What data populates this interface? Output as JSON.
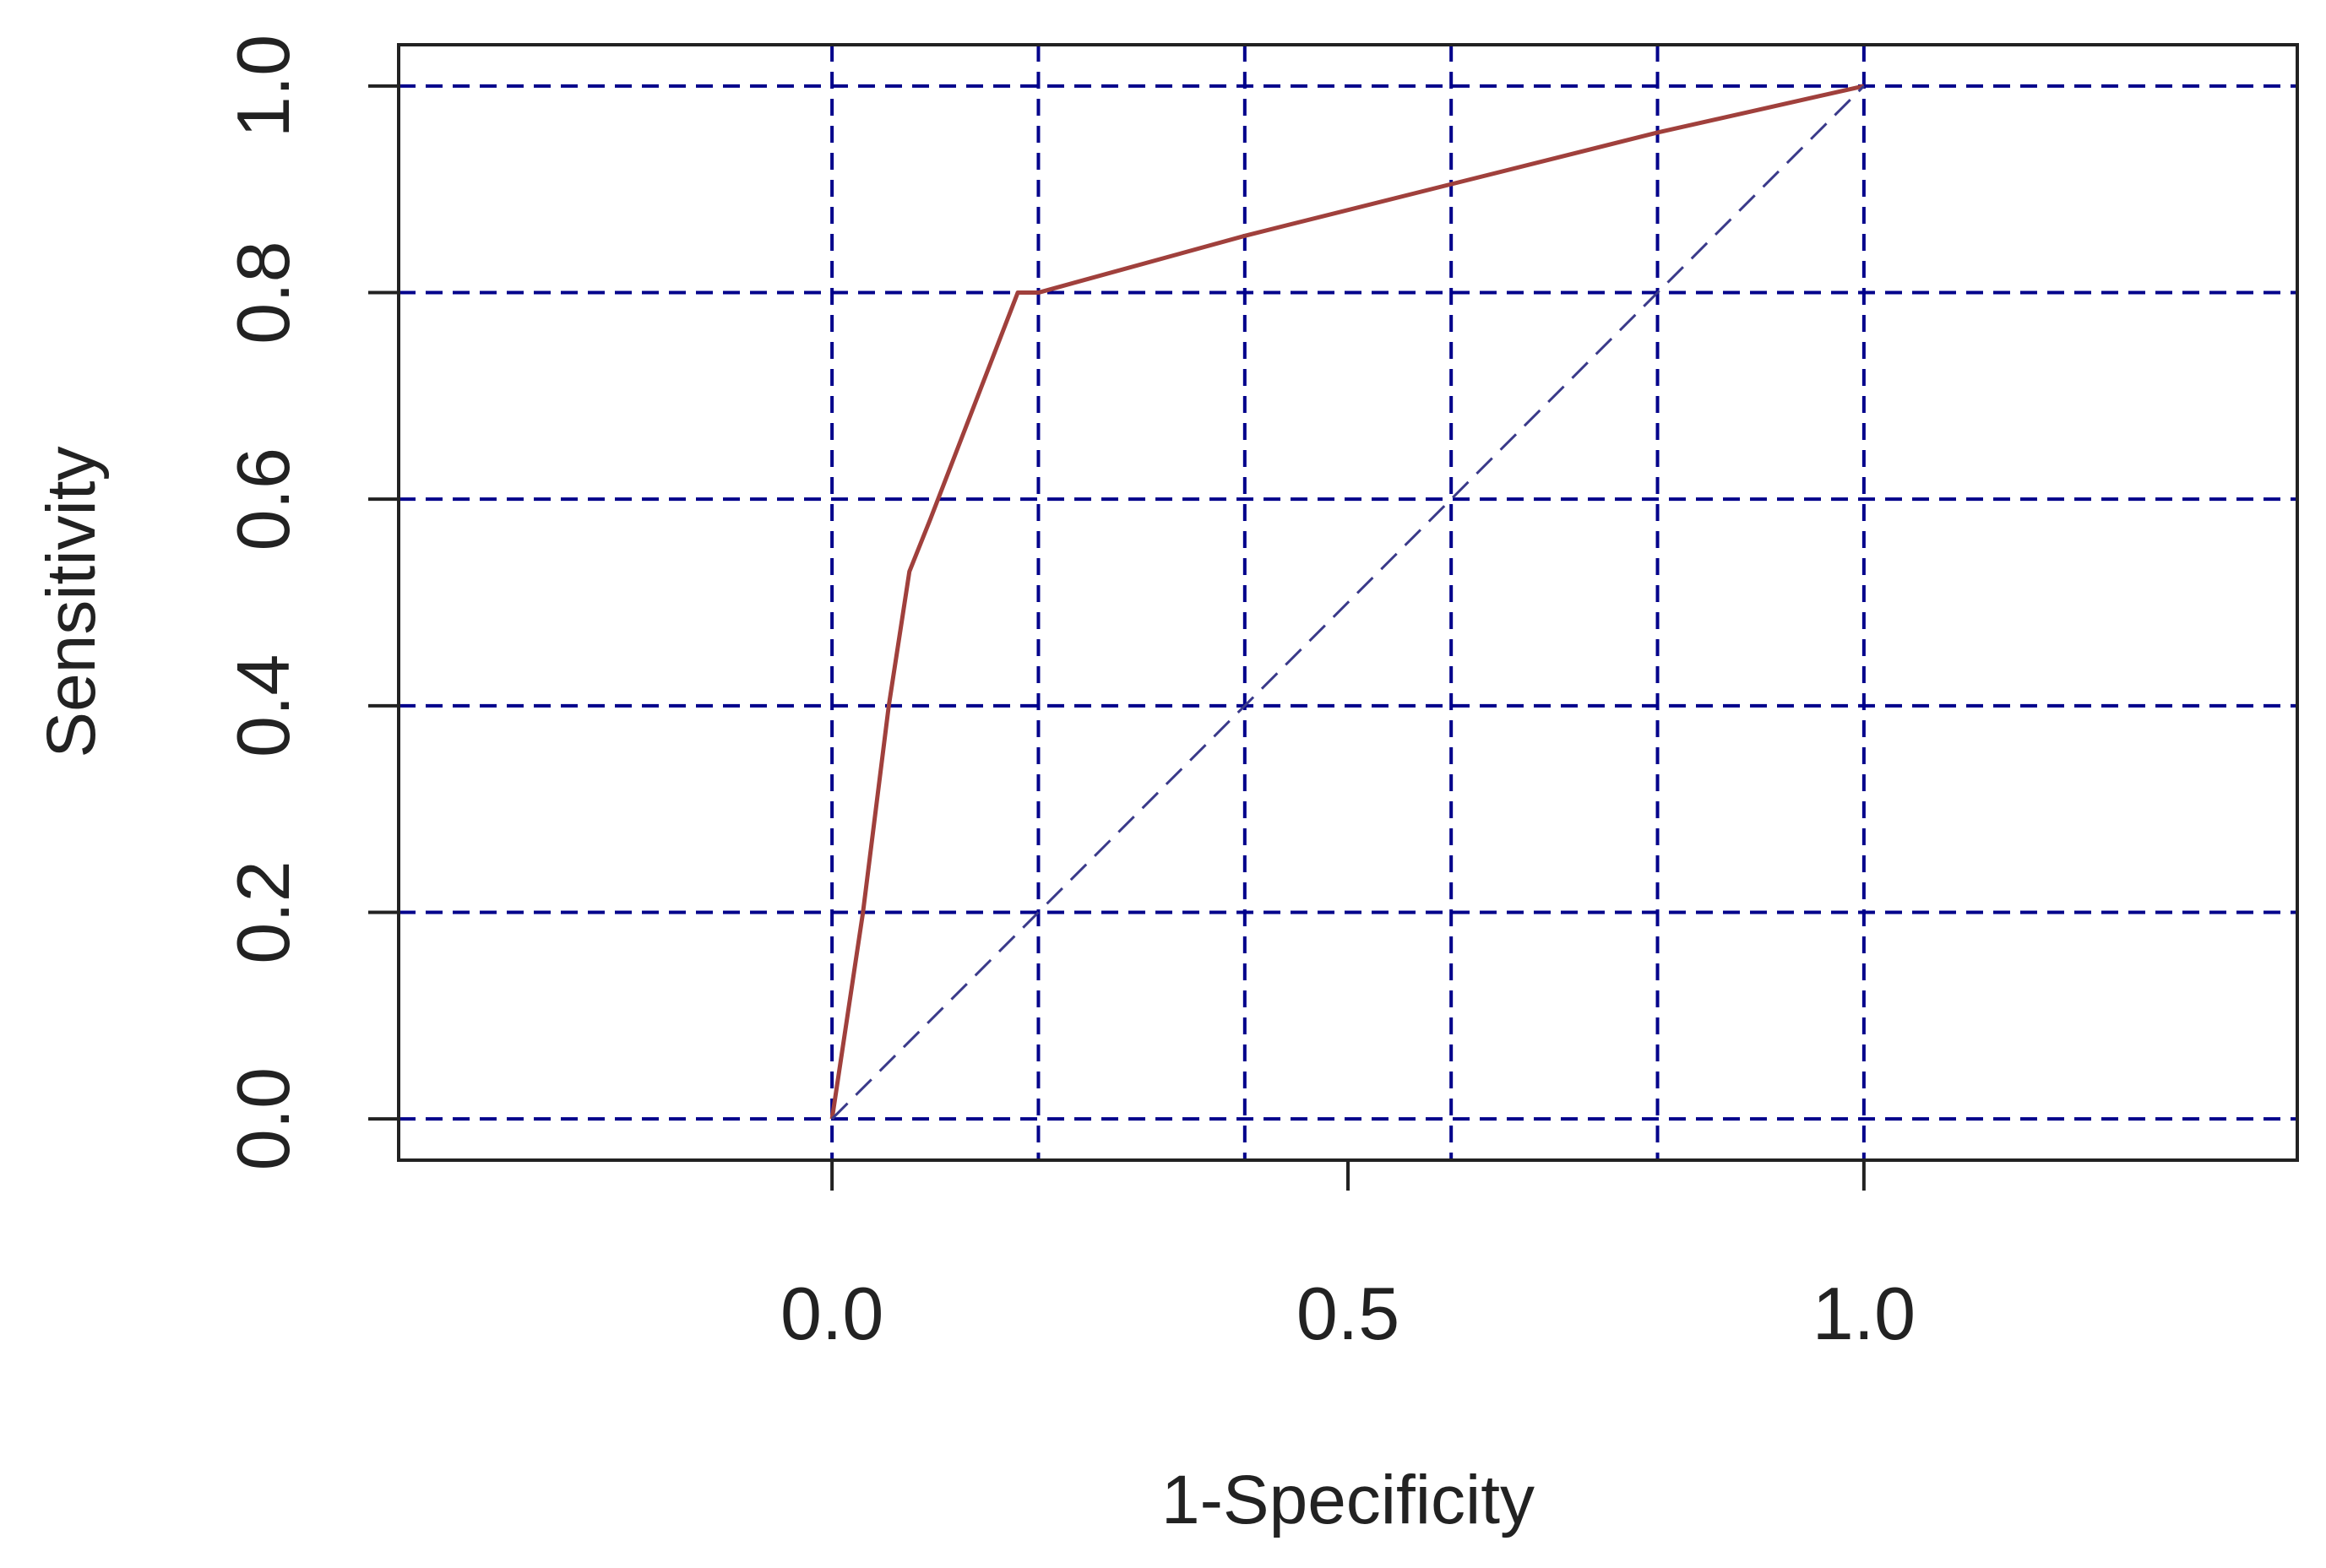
{
  "chart_data": {
    "type": "line",
    "title": "",
    "xlabel": "1-Specificity",
    "ylabel": "Sensitivity",
    "xlim": [
      -0.42,
      1.42
    ],
    "ylim": [
      -0.04,
      1.04
    ],
    "x_ticks": [
      {
        "value": 0.0,
        "label": "0.0"
      },
      {
        "value": 0.5,
        "label": "0.5"
      },
      {
        "value": 1.0,
        "label": "1.0"
      }
    ],
    "y_ticks": [
      {
        "value": 0.0,
        "label": "0.0"
      },
      {
        "value": 0.2,
        "label": "0.2"
      },
      {
        "value": 0.4,
        "label": "0.4"
      },
      {
        "value": 0.6,
        "label": "0.6"
      },
      {
        "value": 0.8,
        "label": "0.8"
      },
      {
        "value": 1.0,
        "label": "1.0"
      }
    ],
    "grid": {
      "on": true,
      "style": "dashed",
      "x": [
        0.0,
        0.2,
        0.4,
        0.6,
        0.8,
        1.0
      ],
      "y": [
        0.0,
        0.2,
        0.4,
        0.6,
        0.8,
        1.0
      ],
      "color": "#00008b"
    },
    "series": [
      {
        "style": "solid",
        "color": "#a0403c",
        "x": [
          0.0,
          0.03,
          0.055,
          0.075,
          0.095,
          0.18,
          0.2,
          0.4,
          0.6,
          0.8,
          1.0
        ],
        "y": [
          0.0,
          0.2,
          0.4,
          0.53,
          0.58,
          0.8,
          0.8,
          0.855,
          0.905,
          0.955,
          1.0
        ]
      },
      {
        "style": "dashed",
        "color": "#3a3a8a",
        "x": [
          0.0,
          1.0
        ],
        "y": [
          0.0,
          1.0
        ]
      }
    ]
  }
}
